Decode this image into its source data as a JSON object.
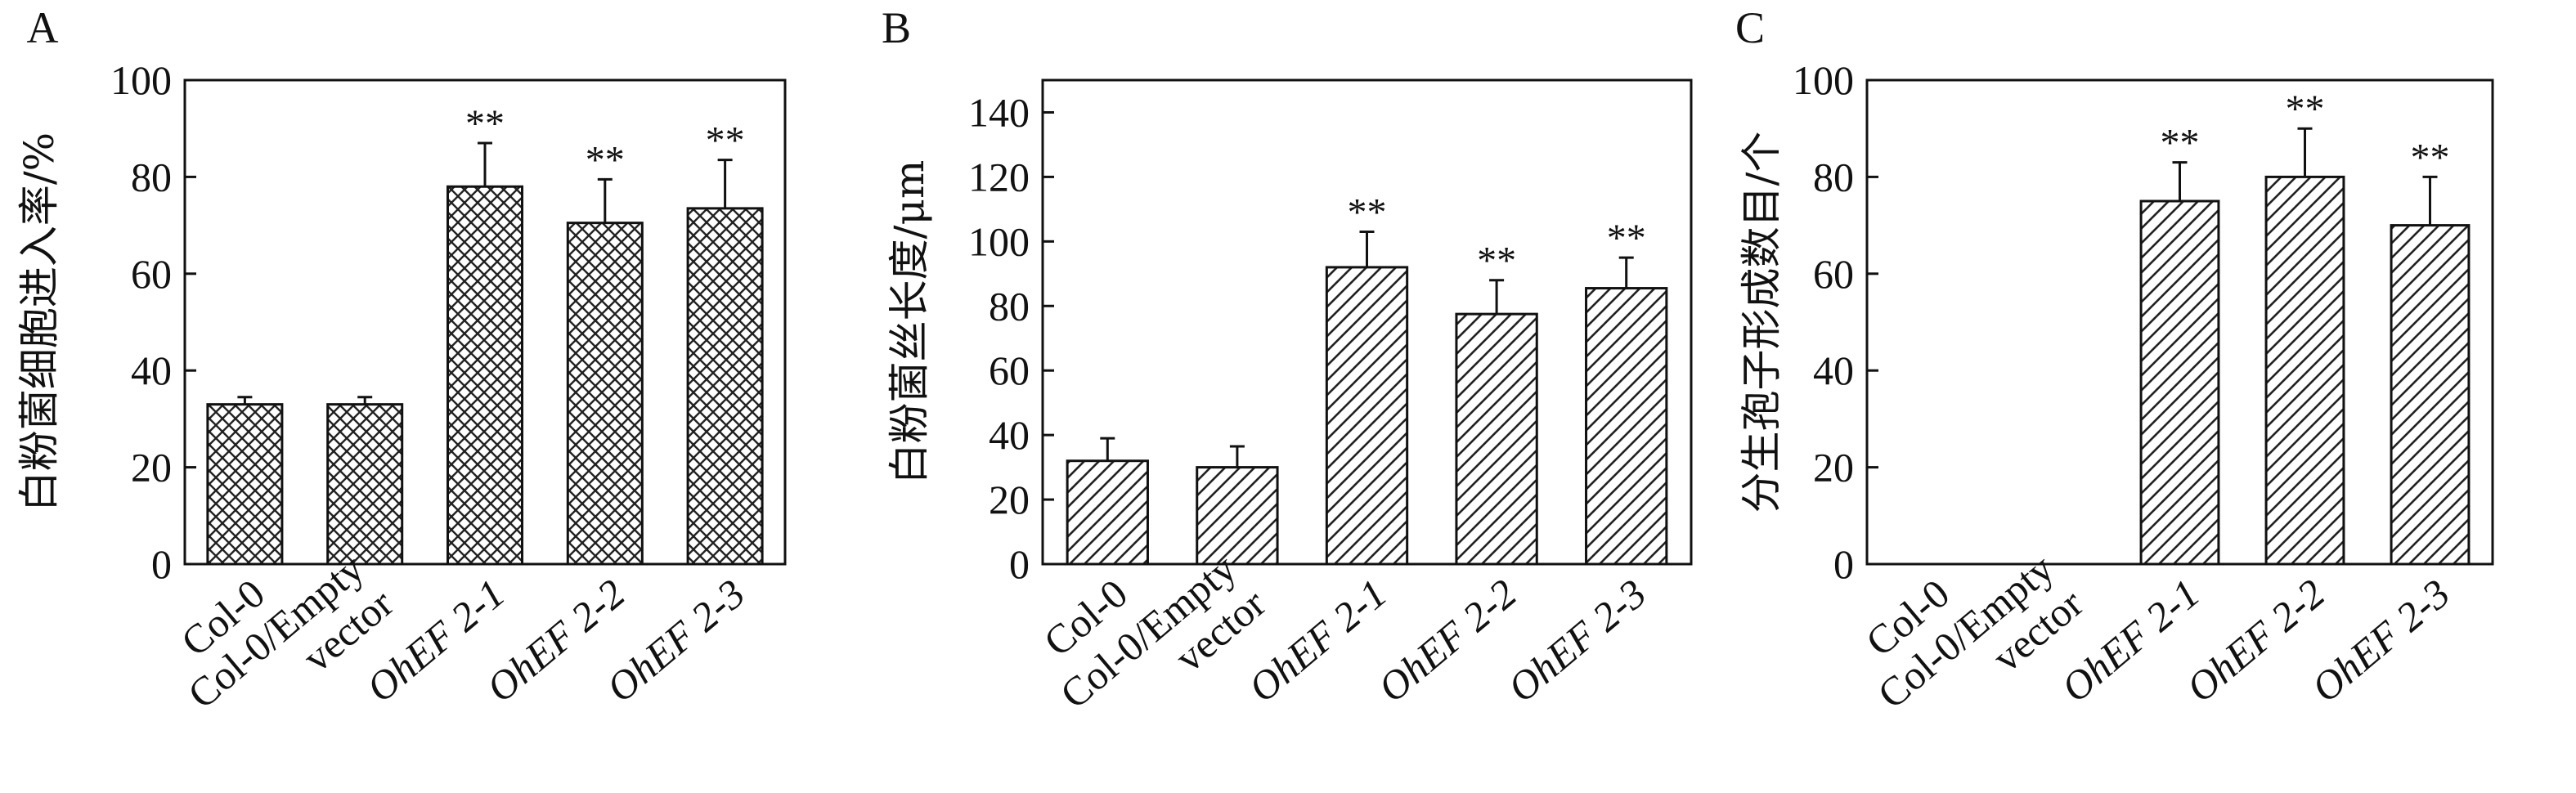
{
  "chart_data": [
    {
      "panel": "A",
      "type": "bar",
      "pattern": "crosshatch",
      "ylabel": "白粉菌细胞进入率/%",
      "ylim": [
        0,
        100
      ],
      "yticks": [
        0,
        20,
        40,
        60,
        80,
        100
      ],
      "categories": [
        {
          "lines": [
            "Col-0"
          ],
          "italic": false
        },
        {
          "lines": [
            "Col-0/Empty",
            "vector"
          ],
          "italic": false
        },
        {
          "lines": [
            "OhEF 2-1"
          ],
          "italic": true
        },
        {
          "lines": [
            "OhEF 2-2"
          ],
          "italic": true
        },
        {
          "lines": [
            "OhEF 2-3"
          ],
          "italic": true
        }
      ],
      "values": [
        33,
        33,
        78,
        70.5,
        73.5
      ],
      "errors": [
        1.5,
        1.5,
        9,
        9,
        10
      ],
      "significance": [
        "",
        "",
        "**",
        "**",
        "**"
      ]
    },
    {
      "panel": "B",
      "type": "bar",
      "pattern": "diagonal",
      "ylabel": "白粉菌丝长度/μm",
      "ylim": [
        0,
        150
      ],
      "yticks": [
        0,
        20,
        40,
        60,
        80,
        100,
        120,
        140
      ],
      "categories": [
        {
          "lines": [
            "Col-0"
          ],
          "italic": false
        },
        {
          "lines": [
            "Col-0/Empty",
            "vector"
          ],
          "italic": false
        },
        {
          "lines": [
            "OhEF 2-1"
          ],
          "italic": true
        },
        {
          "lines": [
            "OhEF 2-2"
          ],
          "italic": true
        },
        {
          "lines": [
            "OhEF 2-3"
          ],
          "italic": true
        }
      ],
      "values": [
        32,
        30,
        92,
        77.5,
        85.5
      ],
      "errors": [
        7,
        6.5,
        11,
        10.5,
        9.5
      ],
      "significance": [
        "",
        "",
        "**",
        "**",
        "**"
      ]
    },
    {
      "panel": "C",
      "type": "bar",
      "pattern": "diagonal",
      "ylabel": "分生孢子形成数目/个",
      "ylim": [
        0,
        100
      ],
      "yticks": [
        0,
        20,
        40,
        60,
        80,
        100
      ],
      "categories": [
        {
          "lines": [
            "Col-0"
          ],
          "italic": false
        },
        {
          "lines": [
            "Col-0/Empty",
            "vector"
          ],
          "italic": false
        },
        {
          "lines": [
            "OhEF 2-1"
          ],
          "italic": true
        },
        {
          "lines": [
            "OhEF 2-2"
          ],
          "italic": true
        },
        {
          "lines": [
            "OhEF 2-3"
          ],
          "italic": true
        }
      ],
      "values": [
        0,
        0,
        75,
        80,
        70
      ],
      "errors": [
        0,
        0,
        8,
        10,
        10
      ],
      "significance": [
        "",
        "",
        "**",
        "**",
        "**"
      ]
    }
  ]
}
